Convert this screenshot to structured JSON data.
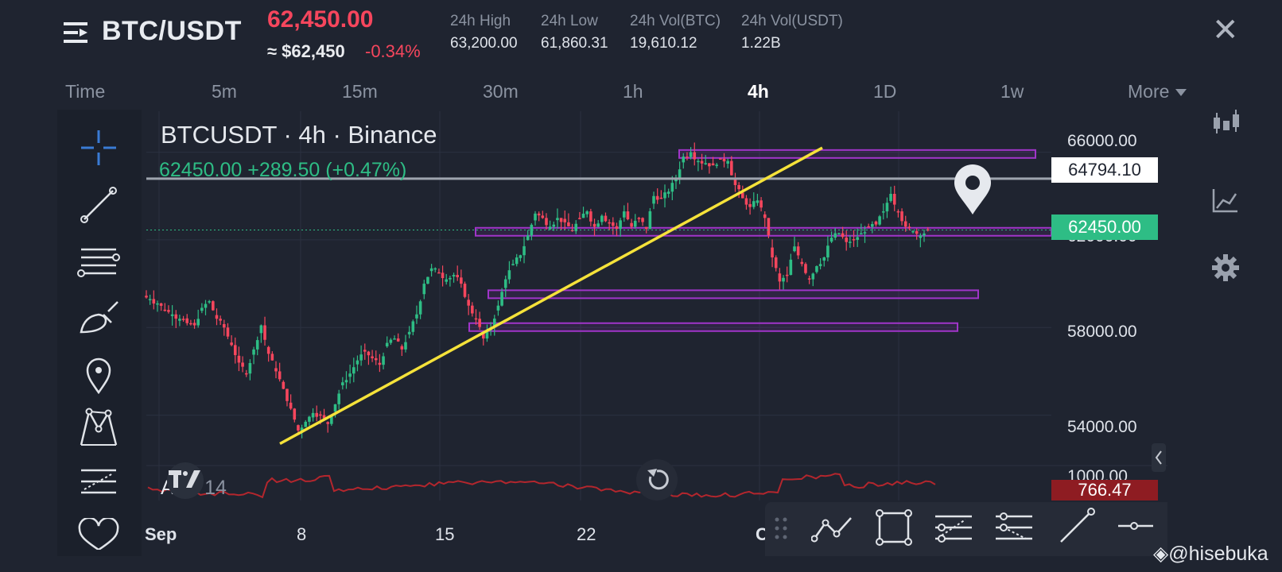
{
  "header": {
    "pair": "BTC/USDT",
    "last_price": "62,450.00",
    "approx_usd": "≈ $62,450",
    "change_pct": "-0.34%",
    "stats": [
      {
        "label": "24h High",
        "value": "63,200.00"
      },
      {
        "label": "24h Low",
        "value": "61,860.31"
      },
      {
        "label": "24h Vol(BTC)",
        "value": "19,610.12"
      },
      {
        "label": "24h Vol(USDT)",
        "value": "1.22B"
      }
    ],
    "close_icon": "close-icon"
  },
  "timeframes": [
    "Time",
    "5m",
    "15m",
    "30m",
    "1h",
    "4h",
    "1D",
    "1w",
    "More"
  ],
  "active_timeframe": "4h",
  "chart": {
    "title": "BTCUSDT · 4h · Binance",
    "ohlc": "62450.00  +289.50 (+0.47%)",
    "price_axis": [
      "66000.00",
      "62000.00",
      "58000.00",
      "54000.00",
      "1000.00"
    ],
    "tag_crosshair": "64794.10",
    "tag_last": "62450.00",
    "tag_atr": "766.47",
    "indicator_name": "ATR",
    "indicator_period": "14",
    "dates": [
      "Sep",
      "8",
      "15",
      "22",
      "O"
    ],
    "colors": {
      "up": "#2ebd85",
      "down": "#f6465d",
      "trendline": "#f5e23a",
      "zone": "#a035c9",
      "atr": "#b3262d"
    }
  },
  "chart_data": {
    "type": "candlestick",
    "symbol": "BTCUSDT",
    "interval": "4h",
    "exchange": "Binance",
    "ylim": [
      52500,
      67000
    ],
    "y_ticks": [
      66000,
      62000,
      58000,
      54000
    ],
    "x_ticks": [
      "Sep",
      "8",
      "15",
      "22",
      "O"
    ],
    "close_path": [
      59300,
      59100,
      58800,
      58600,
      58400,
      58200,
      58100,
      58900,
      59200,
      58400,
      58000,
      57200,
      56400,
      55900,
      57000,
      58100,
      56800,
      56000,
      55200,
      54300,
      53300,
      53700,
      54100,
      54000,
      53600,
      54500,
      55500,
      55900,
      56500,
      56900,
      56600,
      56300,
      57300,
      57500,
      57000,
      57800,
      58600,
      60000,
      60700,
      60500,
      60200,
      60400,
      60000,
      59000,
      58400,
      57500,
      58000,
      59000,
      60200,
      60900,
      61300,
      62200,
      63200,
      63000,
      62600,
      63000,
      62800,
      62400,
      63000,
      63300,
      62600,
      63100,
      62800,
      62500,
      63300,
      62600,
      63000,
      62500,
      64000,
      63900,
      64200,
      64800,
      65800,
      66000,
      65600,
      65500,
      65400,
      65700,
      65600,
      64500,
      63900,
      63500,
      63800,
      63000,
      61200,
      60100,
      60400,
      61700,
      60900,
      60200,
      60800,
      61200,
      62100,
      62300,
      61900,
      62000,
      62300,
      62600,
      62700,
      63300,
      64100,
      63300,
      62600,
      62400,
      62200,
      62450
    ],
    "support_resistance_zones": [
      [
        65850,
        66100
      ],
      [
        62350,
        62550
      ],
      [
        59500,
        59700
      ],
      [
        58000,
        58200
      ]
    ],
    "horizontal_line": 64794.1,
    "last_price": 62450.0,
    "trendline": [
      [
        1,
        52700
      ],
      [
        0.76,
        66200
      ]
    ],
    "atr_14": 766.47
  },
  "tools_left": [
    "crosshair-icon",
    "trendline-icon",
    "fib-icon",
    "brush-icon",
    "pin-icon",
    "pattern-icon",
    "measure-icon",
    "favorite-icon"
  ],
  "tools_right": [
    "indicators-icon",
    "chart-type-icon",
    "settings-icon"
  ],
  "draw_tools": [
    "grip-icon",
    "path-icon",
    "rectangle-icon",
    "parallel-channel-icon",
    "fib-channel-icon",
    "line-icon",
    "horizontal-ray-icon"
  ],
  "watermark": "@hisebuka"
}
